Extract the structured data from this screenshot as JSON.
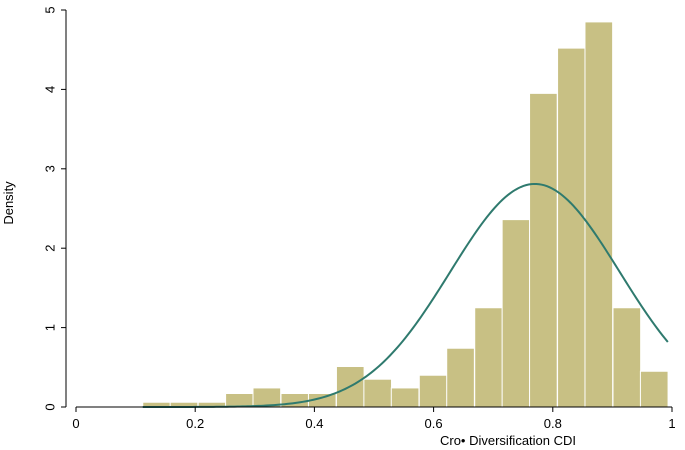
{
  "chart_data": {
    "type": "bar",
    "subtype": "histogram-with-density-curve",
    "xlabel": "Cro• Diversification CDI",
    "ylabel": "Density",
    "xlim": [
      0,
      1
    ],
    "ylim": [
      0,
      5
    ],
    "x_ticks": [
      "0",
      "0.2",
      "0.4",
      "0.6",
      "0.8",
      "1"
    ],
    "y_ticks": [
      "0",
      "1",
      "2",
      "3",
      "4",
      "5"
    ],
    "bin_width": 0.0464,
    "bins": [
      {
        "start": 0.112,
        "density": 0.06
      },
      {
        "start": 0.158,
        "density": 0.06
      },
      {
        "start": 0.205,
        "density": 0.06
      },
      {
        "start": 0.251,
        "density": 0.17
      },
      {
        "start": 0.297,
        "density": 0.24
      },
      {
        "start": 0.344,
        "density": 0.17
      },
      {
        "start": 0.39,
        "density": 0.17
      },
      {
        "start": 0.437,
        "density": 0.51
      },
      {
        "start": 0.483,
        "density": 0.35
      },
      {
        "start": 0.529,
        "density": 0.24
      },
      {
        "start": 0.576,
        "density": 0.4
      },
      {
        "start": 0.622,
        "density": 0.74
      },
      {
        "start": 0.669,
        "density": 1.25
      },
      {
        "start": 0.715,
        "density": 2.36
      },
      {
        "start": 0.761,
        "density": 3.95
      },
      {
        "start": 0.808,
        "density": 4.52
      },
      {
        "start": 0.854,
        "density": 4.85
      },
      {
        "start": 0.901,
        "density": 1.25
      },
      {
        "start": 0.947,
        "density": 0.45
      }
    ],
    "normal_curve": {
      "mean": 0.77,
      "sd": 0.142,
      "x_range": [
        0.112,
        0.993
      ]
    },
    "grid": false,
    "legend": "none",
    "colors": {
      "bar_fill": "#c8c084",
      "bar_edge": "#ffffff",
      "curve": "#2f7a6e",
      "axis": "#000000"
    }
  }
}
